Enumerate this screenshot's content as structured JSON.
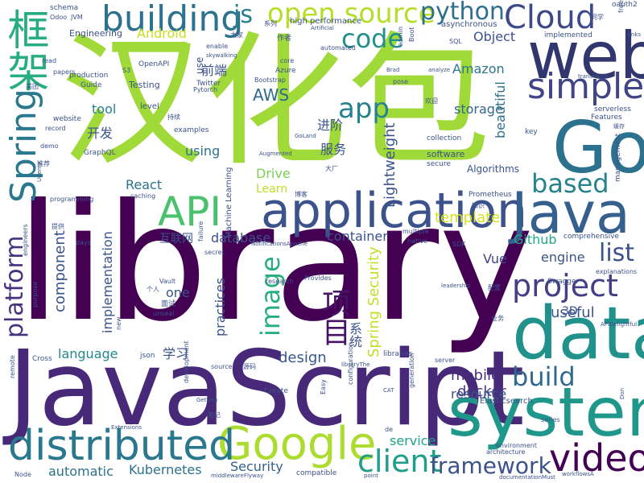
{
  "words": [
    {
      "text": "library",
      "color": "#440154"
    },
    {
      "text": "JavaScript",
      "color": "#482878"
    },
    {
      "text": "汉化包",
      "color": "#a0da39"
    },
    {
      "text": "web",
      "color": "#31366e"
    },
    {
      "text": "Go",
      "color": "#2c728e"
    },
    {
      "text": "data",
      "color": "#21918c"
    },
    {
      "text": "system",
      "color": "#1f988b"
    },
    {
      "text": "application",
      "color": "#3b528b"
    },
    {
      "text": "Java",
      "color": "#35608d"
    },
    {
      "text": "Google",
      "color": "#addc30"
    },
    {
      "text": "distributed",
      "color": "#2a788e"
    },
    {
      "text": "video",
      "color": "#440154"
    },
    {
      "text": "API",
      "color": "#4ac16d"
    },
    {
      "text": "Cloud",
      "color": "#3e4989"
    },
    {
      "text": "simple",
      "color": "#414487"
    },
    {
      "text": "project",
      "color": "#433e85"
    },
    {
      "text": "building",
      "color": "#2c728e"
    },
    {
      "text": "框架",
      "color": "#27ad81"
    },
    {
      "text": "Spring",
      "color": "#2a788e"
    },
    {
      "text": "client",
      "color": "#1f9e89"
    },
    {
      "text": "framework",
      "color": "#3b528b"
    },
    {
      "text": "open source",
      "color": "#b5de2b"
    },
    {
      "text": "code",
      "color": "#21918c"
    },
    {
      "text": "python",
      "color": "#2e6f8e"
    },
    {
      "text": "js",
      "color": "#287c8e"
    },
    {
      "text": "app",
      "color": "#26828e"
    },
    {
      "text": "based",
      "color": "#25838e"
    },
    {
      "text": "list",
      "color": "#3b528b"
    },
    {
      "text": "platform",
      "color": "#46327e"
    },
    {
      "text": "build",
      "color": "#31688e"
    },
    {
      "text": "image",
      "color": "#29af7f"
    },
    {
      "text": "项目",
      "color": "#471365"
    },
    {
      "text": "Android",
      "color": "#c8e020"
    },
    {
      "text": "Amazon",
      "color": "#2a788e"
    },
    {
      "text": "AWS",
      "color": "#31688e"
    },
    {
      "text": "Spring Security",
      "color": "#c2df23"
    },
    {
      "text": "Lightweight",
      "color": "#3b528b"
    },
    {
      "text": "React",
      "color": "#2c728e"
    },
    {
      "text": "Drive",
      "color": "#7ad151"
    },
    {
      "text": "Kubernetes",
      "color": "#2c728e"
    },
    {
      "text": "mobile",
      "color": "#472d7b"
    },
    {
      "text": "Security",
      "color": "#34618d"
    },
    {
      "text": "docker",
      "color": "#443983"
    },
    {
      "text": "useful",
      "color": "#3b528b"
    },
    {
      "text": "component",
      "color": "#3b528b"
    },
    {
      "text": "implementation",
      "color": "#3b528b"
    },
    {
      "text": "language",
      "color": "#23898e"
    },
    {
      "text": "design",
      "color": "#38588c"
    },
    {
      "text": "service",
      "color": "#20a386"
    },
    {
      "text": "resource",
      "color": "#3b528b"
    },
    {
      "text": "container",
      "color": "#3b528b"
    },
    {
      "text": "database",
      "color": "#3b528b"
    },
    {
      "text": "template",
      "color": "#d8e219"
    },
    {
      "text": "Github",
      "color": "#22a884"
    },
    {
      "text": "storage",
      "color": "#31688e"
    },
    {
      "text": "beautiful",
      "color": "#2d708e"
    },
    {
      "text": "engine",
      "color": "#3b528b"
    },
    {
      "text": "using",
      "color": "#2c728e"
    },
    {
      "text": "automatic",
      "color": "#2c728e"
    },
    {
      "text": "tool",
      "color": "#26828e"
    },
    {
      "text": "Vue",
      "color": "#414487"
    },
    {
      "text": "one",
      "color": "#3b528b"
    },
    {
      "text": "3D",
      "color": "#3b528b"
    },
    {
      "text": "practices",
      "color": "#3b528b"
    },
    {
      "text": "服务",
      "color": "#3b528b"
    },
    {
      "text": "前端",
      "color": "#3b528b"
    },
    {
      "text": "开发",
      "color": "#3b528b"
    },
    {
      "text": "进阶",
      "color": "#3b528b"
    },
    {
      "text": "学习",
      "color": "#3b528b"
    },
    {
      "text": "系统",
      "color": "#3b528b"
    },
    {
      "text": "互联网",
      "color": "#3b528b"
    },
    {
      "text": "Learn",
      "color": "#bddf26"
    },
    {
      "text": "Object",
      "color": "#3b528b"
    },
    {
      "text": "Machine Learning",
      "color": "#3b528b"
    },
    {
      "text": "Engineering",
      "color": "#3b528b"
    },
    {
      "text": "Algorithms",
      "color": "#3b528b"
    },
    {
      "text": "Elasticsearch",
      "color": "#3b528b"
    },
    {
      "text": "software",
      "color": "#3b528b"
    },
    {
      "text": "Testing",
      "color": "#3b528b"
    },
    {
      "text": "use",
      "color": "#3b528b"
    },
    {
      "text": "level",
      "color": "#3b528b"
    },
    {
      "text": "high performance",
      "color": "#3b528b"
    },
    {
      "text": "asynchronous",
      "color": "#3b528b"
    },
    {
      "text": "implemented",
      "color": "#3b528b"
    },
    {
      "text": "Prometheus",
      "color": "#3b528b"
    },
    {
      "text": "examples",
      "color": "#3b528b"
    },
    {
      "text": "collection",
      "color": "#3b528b"
    },
    {
      "text": "secure",
      "color": "#3b528b"
    },
    {
      "text": "Features",
      "color": "#3b528b"
    },
    {
      "text": "serverless",
      "color": "#3b528b"
    },
    {
      "text": "key",
      "color": "#3b528b"
    },
    {
      "text": "management",
      "color": "#3b528b"
    },
    {
      "text": "comprehensive",
      "color": "#3b528b"
    },
    {
      "text": "Swagger",
      "color": "#3b528b"
    },
    {
      "text": "explanations",
      "color": "#3b528b"
    },
    {
      "text": "oauth2",
      "color": "#3b528b"
    },
    {
      "text": "free",
      "color": "#3b528b"
    },
    {
      "text": "links",
      "color": "#3b528b"
    },
    {
      "text": "schema",
      "color": "#3b528b"
    },
    {
      "text": "JVM",
      "color": "#3b528b"
    },
    {
      "text": "Odoo",
      "color": "#3b528b"
    },
    {
      "text": "OpenAPI",
      "color": "#3b528b"
    },
    {
      "text": "production",
      "color": "#3b528b"
    },
    {
      "text": "papers",
      "color": "#3b528b"
    },
    {
      "text": "read",
      "color": "#3b528b"
    },
    {
      "text": "Guide",
      "color": "#3b528b"
    },
    {
      "text": "Twitter",
      "color": "#3b528b"
    },
    {
      "text": "Bootstrap",
      "color": "#3b528b"
    },
    {
      "text": "Pytorch",
      "color": "#3b528b"
    },
    {
      "text": "Azure",
      "color": "#3b528b"
    },
    {
      "text": "S3",
      "color": "#3b528b"
    },
    {
      "text": "skywalking",
      "color": "#3b528b"
    },
    {
      "text": "enable",
      "color": "#3b528b"
    },
    {
      "text": "core",
      "color": "#3b528b"
    },
    {
      "text": "automated",
      "color": "#3b528b"
    },
    {
      "text": "Artificial",
      "color": "#3b528b"
    },
    {
      "text": "admin",
      "color": "#3b528b"
    },
    {
      "text": "Boot",
      "color": "#3b528b"
    },
    {
      "text": "SQL",
      "color": "#3b528b"
    },
    {
      "text": "pose",
      "color": "#3b528b"
    },
    {
      "text": "Brad",
      "color": "#3b528b"
    },
    {
      "text": "analyze",
      "color": "#3b528b"
    },
    {
      "text": "website",
      "color": "#3b528b"
    },
    {
      "text": "record",
      "color": "#3b528b"
    },
    {
      "text": "demo",
      "color": "#3b528b"
    },
    {
      "text": "GraphQL",
      "color": "#3b528b"
    },
    {
      "text": "Udemy",
      "color": "#3b528b"
    },
    {
      "text": "programming",
      "color": "#3b528b"
    },
    {
      "text": "caching",
      "color": "#3b528b"
    },
    {
      "text": "GoLand",
      "color": "#3b528b"
    },
    {
      "text": "Augmented",
      "color": "#3b528b"
    },
    {
      "text": "days",
      "color": "#3b528b"
    },
    {
      "text": "failure",
      "color": "#3b528b"
    },
    {
      "text": "secret",
      "color": "#3b528b"
    },
    {
      "text": "engineers",
      "color": "#3b528b"
    },
    {
      "text": "purpose",
      "color": "#3b528b"
    },
    {
      "text": "NotificationsApache",
      "color": "#3b528b"
    },
    {
      "text": "multiple",
      "color": "#3b528b"
    },
    {
      "text": "native",
      "color": "#3b528b"
    },
    {
      "text": "SDK",
      "color": "#3b528b"
    },
    {
      "text": "research",
      "color": "#3b528b"
    },
    {
      "text": "Provides",
      "color": "#3b528b"
    },
    {
      "text": "leadership",
      "color": "#3b528b"
    },
    {
      "text": "Vault",
      "color": "#3b528b"
    },
    {
      "text": "unseal",
      "color": "#3b528b"
    },
    {
      "text": "new",
      "color": "#3b528b"
    },
    {
      "text": "remote",
      "color": "#3b528b"
    },
    {
      "text": "Cross",
      "color": "#3b528b"
    },
    {
      "text": "json",
      "color": "#3b528b"
    },
    {
      "text": "source",
      "color": "#3b528b"
    },
    {
      "text": "libraries",
      "color": "#3b528b"
    },
    {
      "text": "server",
      "color": "#3b528b"
    },
    {
      "text": "libraryThe",
      "color": "#3b528b"
    },
    {
      "text": "Create",
      "color": "#3b528b"
    },
    {
      "text": "Easy",
      "color": "#3b528b"
    },
    {
      "text": "configuration",
      "color": "#3b528b"
    },
    {
      "text": "generation",
      "color": "#3b528b"
    },
    {
      "text": "CAT",
      "color": "#3b528b"
    },
    {
      "text": "de",
      "color": "#3b528b"
    },
    {
      "text": "series",
      "color": "#3b528b"
    },
    {
      "text": "Getting",
      "color": "#3b528b"
    },
    {
      "text": "development",
      "color": "#3b528b"
    },
    {
      "text": "Extensions",
      "color": "#3b528b"
    },
    {
      "text": "Node",
      "color": "#3b528b"
    },
    {
      "text": "middlewareFlyway",
      "color": "#3b528b"
    },
    {
      "text": "compatible",
      "color": "#3b528b"
    },
    {
      "text": "point",
      "color": "#3b528b"
    },
    {
      "text": "documentationMust",
      "color": "#3b528b"
    },
    {
      "text": "workflowsA",
      "color": "#3b528b"
    },
    {
      "text": "architecture",
      "color": "#3b528b"
    },
    {
      "text": "environment",
      "color": "#3b528b"
    },
    {
      "text": "APIDelightful",
      "color": "#3b528b"
    },
    {
      "text": "translation",
      "color": "#3b528b"
    },
    {
      "text": "Don",
      "color": "#3b528b"
    },
    {
      "text": "大家",
      "color": "#3b528b"
    },
    {
      "text": "作者",
      "color": "#3b528b"
    },
    {
      "text": "系列",
      "color": "#3b528b"
    },
    {
      "text": "美团",
      "color": "#3b528b"
    },
    {
      "text": "推荐",
      "color": "#3b528b"
    },
    {
      "text": "提供",
      "color": "#3b528b"
    },
    {
      "text": "博客",
      "color": "#3b528b"
    },
    {
      "text": "大厂",
      "color": "#3b528b"
    },
    {
      "text": "知识",
      "color": "#3b528b"
    },
    {
      "text": "配置",
      "color": "#3b528b"
    },
    {
      "text": "个人",
      "color": "#3b528b"
    },
    {
      "text": "面试",
      "color": "#3b528b"
    },
    {
      "text": "源码",
      "color": "#3b528b"
    },
    {
      "text": "业务",
      "color": "#3b528b"
    },
    {
      "text": "笔记",
      "color": "#3b528b"
    },
    {
      "text": "欢迎",
      "color": "#3b528b"
    },
    {
      "text": "持续",
      "color": "#3b528b"
    },
    {
      "text": "同学",
      "color": "#3b528b"
    },
    {
      "text": "缓存",
      "color": "#3b528b"
    }
  ]
}
